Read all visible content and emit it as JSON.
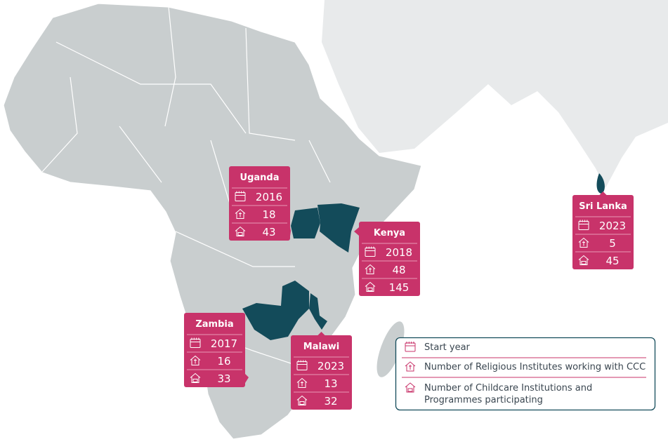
{
  "countries": [
    {
      "name": "Uganda",
      "start_year": 2016,
      "religious_institutes": 18,
      "childcare_institutions": 43
    },
    {
      "name": "Kenya",
      "start_year": 2018,
      "religious_institutes": 48,
      "childcare_institutions": 145
    },
    {
      "name": "Zambia",
      "start_year": 2017,
      "religious_institutes": 16,
      "childcare_institutions": 33
    },
    {
      "name": "Malawi",
      "start_year": 2023,
      "religious_institutes": 13,
      "childcare_institutions": 32
    },
    {
      "name": "Sri Lanka",
      "start_year": 2023,
      "religious_institutes": 5,
      "childcare_institutions": 45
    }
  ],
  "legend": {
    "start_year": "Start year",
    "religious_institutes": "Number of Religious Institutes working with CCC",
    "childcare_institutions": "Number of Childcare Institutions and Programmes participating"
  }
}
